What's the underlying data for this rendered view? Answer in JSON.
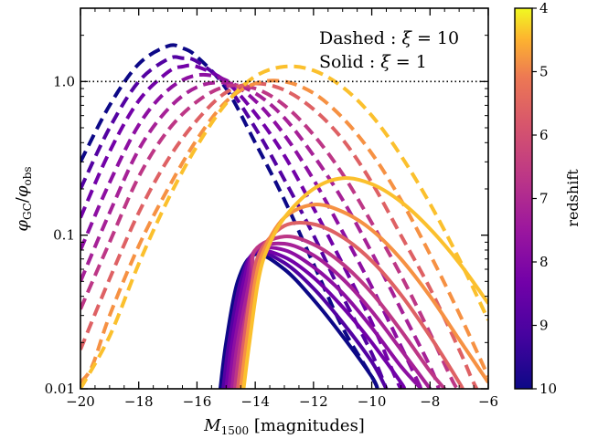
{
  "chart_data": {
    "type": "line",
    "xlabel_main": "M",
    "xlabel_sub": "1500",
    "xlabel_unit": "[magnitudes]",
    "ylabel_main": "φ",
    "ylabel_sub_num": "GC",
    "ylabel_sub_den": "obs",
    "ylabel_sep": "/",
    "xlim": [
      -20,
      -6
    ],
    "ylim": [
      0.01,
      3
    ],
    "yscale": "log",
    "x_ticks": [
      -20,
      -18,
      -16,
      -14,
      -12,
      -10,
      -8,
      -6
    ],
    "x_tick_labels": [
      "−20",
      "−18",
      "−16",
      "−14",
      "−12",
      "−10",
      "−8",
      "−6"
    ],
    "y_ticks": [
      0.01,
      0.1,
      1.0
    ],
    "y_tick_labels": [
      "0.01",
      "0.1",
      "1.0"
    ],
    "reference_line": {
      "y": 1.0,
      "style": "dotted"
    },
    "legend_lines": [
      {
        "key": "Dashed",
        "param": "ξ",
        "value": "10"
      },
      {
        "key": "Solid",
        "param": "ξ",
        "value": "1"
      }
    ],
    "colorbar": {
      "label": "redshift",
      "range": [
        4,
        10
      ],
      "ticks": [
        4,
        5,
        6,
        7,
        8,
        9,
        10
      ],
      "colormap": "plasma",
      "orientation": "low-at-bottom-high-at-top-reversed"
    },
    "series": [
      {
        "z": 10,
        "dashed": [
          [
            -20,
            0.3
          ],
          [
            -19,
            0.7
          ],
          [
            -18,
            1.3
          ],
          [
            -17,
            1.7
          ],
          [
            -16.5,
            1.65
          ],
          [
            -16,
            1.45
          ],
          [
            -15,
            0.9
          ],
          [
            -14,
            0.4
          ],
          [
            -13,
            0.17
          ],
          [
            -12,
            0.065
          ],
          [
            -11,
            0.025
          ],
          [
            -10,
            0.012
          ],
          [
            -9.8,
            0.01
          ]
        ],
        "solid": [
          [
            -15.2,
            0.01
          ],
          [
            -15,
            0.02
          ],
          [
            -14.6,
            0.05
          ],
          [
            -14,
            0.075
          ],
          [
            -13,
            0.06
          ],
          [
            -12,
            0.038
          ],
          [
            -11,
            0.022
          ],
          [
            -10,
            0.012
          ],
          [
            -9.8,
            0.01
          ]
        ]
      },
      {
        "z": 9,
        "dashed": [
          [
            -20,
            0.2
          ],
          [
            -19,
            0.5
          ],
          [
            -18,
            1.0
          ],
          [
            -17,
            1.4
          ],
          [
            -16.5,
            1.42
          ],
          [
            -16,
            1.35
          ],
          [
            -15,
            0.95
          ],
          [
            -14,
            0.5
          ],
          [
            -13,
            0.23
          ],
          [
            -12,
            0.1
          ],
          [
            -11,
            0.04
          ],
          [
            -10,
            0.017
          ],
          [
            -9.5,
            0.01
          ]
        ],
        "solid": [
          [
            -15.1,
            0.01
          ],
          [
            -14.9,
            0.02
          ],
          [
            -14.5,
            0.05
          ],
          [
            -14,
            0.077
          ],
          [
            -13,
            0.066
          ],
          [
            -12,
            0.045
          ],
          [
            -11,
            0.027
          ],
          [
            -10,
            0.015
          ],
          [
            -9.5,
            0.01
          ]
        ]
      },
      {
        "z": 8.5,
        "dashed": [
          [
            -20,
            0.13
          ],
          [
            -19,
            0.35
          ],
          [
            -18,
            0.75
          ],
          [
            -17,
            1.15
          ],
          [
            -16.5,
            1.25
          ],
          [
            -16,
            1.25
          ],
          [
            -15,
            1.0
          ],
          [
            -14,
            0.62
          ],
          [
            -13,
            0.33
          ],
          [
            -12,
            0.15
          ],
          [
            -11,
            0.065
          ],
          [
            -10,
            0.027
          ],
          [
            -9.2,
            0.012
          ],
          [
            -9,
            0.01
          ]
        ],
        "solid": [
          [
            -15,
            0.01
          ],
          [
            -14.8,
            0.02
          ],
          [
            -14.4,
            0.05
          ],
          [
            -14,
            0.078
          ],
          [
            -13,
            0.072
          ],
          [
            -12,
            0.053
          ],
          [
            -11,
            0.034
          ],
          [
            -10,
            0.02
          ],
          [
            -9,
            0.011
          ],
          [
            -8.9,
            0.01
          ]
        ]
      },
      {
        "z": 8,
        "dashed": [
          [
            -20,
            0.08
          ],
          [
            -19,
            0.22
          ],
          [
            -18,
            0.52
          ],
          [
            -17,
            0.88
          ],
          [
            -16,
            1.1
          ],
          [
            -15,
            1.02
          ],
          [
            -14,
            0.75
          ],
          [
            -13,
            0.45
          ],
          [
            -12,
            0.23
          ],
          [
            -11,
            0.105
          ],
          [
            -10,
            0.046
          ],
          [
            -9,
            0.019
          ],
          [
            -8.5,
            0.012
          ],
          [
            -8.3,
            0.01
          ]
        ],
        "solid": [
          [
            -14.9,
            0.01
          ],
          [
            -14.7,
            0.02
          ],
          [
            -14.3,
            0.05
          ],
          [
            -14,
            0.079
          ],
          [
            -13,
            0.08
          ],
          [
            -12,
            0.062
          ],
          [
            -11,
            0.042
          ],
          [
            -10,
            0.025
          ],
          [
            -9,
            0.014
          ],
          [
            -8.3,
            0.01
          ]
        ]
      },
      {
        "z": 7.5,
        "dashed": [
          [
            -20,
            0.05
          ],
          [
            -19,
            0.14
          ],
          [
            -18,
            0.36
          ],
          [
            -17,
            0.66
          ],
          [
            -16,
            0.92
          ],
          [
            -15,
            0.98
          ],
          [
            -14,
            0.84
          ],
          [
            -13,
            0.58
          ],
          [
            -12,
            0.33
          ],
          [
            -11,
            0.17
          ],
          [
            -10,
            0.077
          ],
          [
            -9,
            0.033
          ],
          [
            -8,
            0.014
          ],
          [
            -7.7,
            0.01
          ]
        ],
        "solid": [
          [
            -14.8,
            0.01
          ],
          [
            -14.6,
            0.02
          ],
          [
            -14.2,
            0.05
          ],
          [
            -14,
            0.08
          ],
          [
            -13,
            0.088
          ],
          [
            -12,
            0.074
          ],
          [
            -11,
            0.052
          ],
          [
            -10,
            0.032
          ],
          [
            -9,
            0.018
          ],
          [
            -8,
            0.01
          ]
        ]
      },
      {
        "z": 7,
        "dashed": [
          [
            -20,
            0.033
          ],
          [
            -19,
            0.09
          ],
          [
            -18,
            0.24
          ],
          [
            -17,
            0.48
          ],
          [
            -16,
            0.74
          ],
          [
            -15,
            0.93
          ],
          [
            -14,
            0.9
          ],
          [
            -13,
            0.7
          ],
          [
            -12,
            0.45
          ],
          [
            -11,
            0.25
          ],
          [
            -10,
            0.12
          ],
          [
            -9,
            0.055
          ],
          [
            -8,
            0.023
          ],
          [
            -7.2,
            0.011
          ],
          [
            -7,
            0.01
          ]
        ],
        "solid": [
          [
            -14.7,
            0.01
          ],
          [
            -14.5,
            0.02
          ],
          [
            -14.1,
            0.05
          ],
          [
            -14,
            0.08
          ],
          [
            -13,
            0.098
          ],
          [
            -12,
            0.087
          ],
          [
            -11,
            0.065
          ],
          [
            -10,
            0.042
          ],
          [
            -9,
            0.024
          ],
          [
            -8,
            0.013
          ],
          [
            -7.5,
            0.01
          ]
        ]
      },
      {
        "z": 6,
        "dashed": [
          [
            -20,
            0.018
          ],
          [
            -19,
            0.052
          ],
          [
            -18,
            0.14
          ],
          [
            -17,
            0.31
          ],
          [
            -16,
            0.56
          ],
          [
            -15,
            0.85
          ],
          [
            -14,
            0.97
          ],
          [
            -13,
            0.88
          ],
          [
            -12,
            0.66
          ],
          [
            -11,
            0.42
          ],
          [
            -10,
            0.22
          ],
          [
            -9,
            0.1
          ],
          [
            -8,
            0.045
          ],
          [
            -7,
            0.018
          ],
          [
            -6.6,
            0.012
          ],
          [
            -6.4,
            0.01
          ]
        ],
        "solid": [
          [
            -14.6,
            0.01
          ],
          [
            -14.4,
            0.02
          ],
          [
            -14.1,
            0.05
          ],
          [
            -13.8,
            0.08
          ],
          [
            -13,
            0.115
          ],
          [
            -12,
            0.118
          ],
          [
            -11,
            0.097
          ],
          [
            -10,
            0.068
          ],
          [
            -9,
            0.041
          ],
          [
            -8,
            0.022
          ],
          [
            -7,
            0.011
          ],
          [
            -6.9,
            0.01
          ]
        ]
      },
      {
        "z": 5,
        "dashed": [
          [
            -20,
            0.011
          ],
          [
            -19.6,
            0.014
          ],
          [
            -19,
            0.03
          ],
          [
            -18,
            0.085
          ],
          [
            -17,
            0.2
          ],
          [
            -16,
            0.42
          ],
          [
            -15,
            0.74
          ],
          [
            -14,
            0.97
          ],
          [
            -13,
            1.0
          ],
          [
            -12,
            0.84
          ],
          [
            -11,
            0.58
          ],
          [
            -10,
            0.34
          ],
          [
            -9,
            0.17
          ],
          [
            -8,
            0.075
          ],
          [
            -7,
            0.031
          ],
          [
            -6,
            0.012
          ]
        ],
        "solid": [
          [
            -14.5,
            0.01
          ],
          [
            -14.3,
            0.02
          ],
          [
            -14,
            0.05
          ],
          [
            -13.7,
            0.08
          ],
          [
            -13,
            0.13
          ],
          [
            -12,
            0.158
          ],
          [
            -11,
            0.142
          ],
          [
            -10,
            0.108
          ],
          [
            -9,
            0.07
          ],
          [
            -8,
            0.04
          ],
          [
            -7,
            0.021
          ],
          [
            -6,
            0.011
          ]
        ]
      },
      {
        "z": 4.3,
        "dashed": [
          [
            -20,
            0.01
          ],
          [
            -19,
            0.022
          ],
          [
            -18,
            0.065
          ],
          [
            -17,
            0.17
          ],
          [
            -16,
            0.38
          ],
          [
            -15,
            0.72
          ],
          [
            -14,
            1.08
          ],
          [
            -13,
            1.25
          ],
          [
            -12,
            1.18
          ],
          [
            -11,
            0.92
          ],
          [
            -10,
            0.6
          ],
          [
            -9,
            0.33
          ],
          [
            -8,
            0.16
          ],
          [
            -7,
            0.07
          ],
          [
            -6,
            0.028
          ]
        ],
        "solid": [
          [
            -14.4,
            0.01
          ],
          [
            -14.2,
            0.02
          ],
          [
            -13.9,
            0.05
          ],
          [
            -13.6,
            0.08
          ],
          [
            -13,
            0.13
          ],
          [
            -12,
            0.2
          ],
          [
            -11,
            0.235
          ],
          [
            -10,
            0.215
          ],
          [
            -9,
            0.165
          ],
          [
            -8,
            0.11
          ],
          [
            -7,
            0.066
          ],
          [
            -6,
            0.036
          ]
        ]
      }
    ]
  }
}
